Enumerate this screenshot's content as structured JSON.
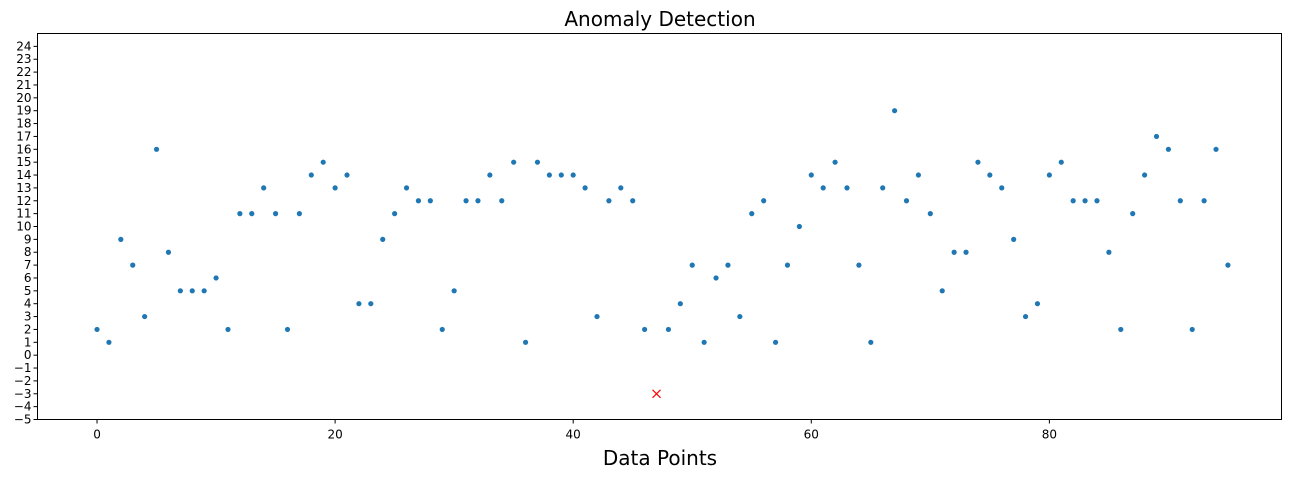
{
  "chart_data": {
    "type": "scatter",
    "title": "Anomaly Detection",
    "xlabel": "Data Points",
    "ylabel": "",
    "xlim": [
      -5,
      99.5
    ],
    "ylim": [
      -5,
      25
    ],
    "xticks": [
      0,
      20,
      40,
      60,
      80
    ],
    "yticks": [
      -5,
      -4,
      -3,
      -2,
      -1,
      0,
      1,
      2,
      3,
      4,
      5,
      6,
      7,
      8,
      9,
      10,
      11,
      12,
      13,
      14,
      15,
      16,
      17,
      18,
      19,
      20,
      21,
      22,
      23,
      24
    ],
    "grid": false,
    "series": [
      {
        "marker": "dot",
        "color": "#1f77b4",
        "x": [
          0,
          1,
          2,
          3,
          4,
          5,
          6,
          7,
          8,
          9,
          10,
          11,
          12,
          13,
          14,
          15,
          16,
          17,
          18,
          19,
          20,
          21,
          22,
          23,
          24,
          25,
          26,
          27,
          28,
          29,
          30,
          31,
          32,
          33,
          34,
          35,
          36,
          37,
          38,
          39,
          40,
          41,
          42,
          43,
          44,
          45,
          46,
          48,
          49,
          50,
          51,
          52,
          53,
          54,
          55,
          56,
          57,
          58,
          59,
          60,
          61,
          62,
          63,
          64,
          65,
          66,
          67,
          68,
          69,
          70,
          71,
          72,
          73,
          74,
          75,
          76,
          77,
          78,
          79,
          80,
          81,
          82,
          83,
          84,
          85,
          86,
          87,
          88,
          89,
          90,
          91,
          92,
          93,
          94,
          95
        ],
        "y": [
          2,
          1,
          9,
          7,
          3,
          16,
          8,
          5,
          5,
          5,
          6,
          2,
          11,
          11,
          13,
          11,
          2,
          11,
          14,
          15,
          13,
          14,
          4,
          4,
          9,
          11,
          13,
          12,
          12,
          2,
          5,
          12,
          12,
          14,
          12,
          15,
          1,
          15,
          14,
          14,
          14,
          13,
          3,
          12,
          13,
          12,
          2,
          2,
          4,
          7,
          1,
          6,
          7,
          3,
          11,
          12,
          1,
          7,
          10,
          14,
          13,
          15,
          13,
          7,
          1,
          13,
          19,
          12,
          14,
          11,
          5,
          8,
          8,
          15,
          14,
          13,
          9,
          3,
          4,
          14,
          15,
          12,
          12,
          12,
          8,
          2,
          11,
          14,
          17,
          16,
          12,
          2,
          12,
          16,
          7
        ]
      },
      {
        "marker": "x",
        "color": "#ff0000",
        "x": [
          47
        ],
        "y": [
          -3
        ]
      }
    ]
  }
}
